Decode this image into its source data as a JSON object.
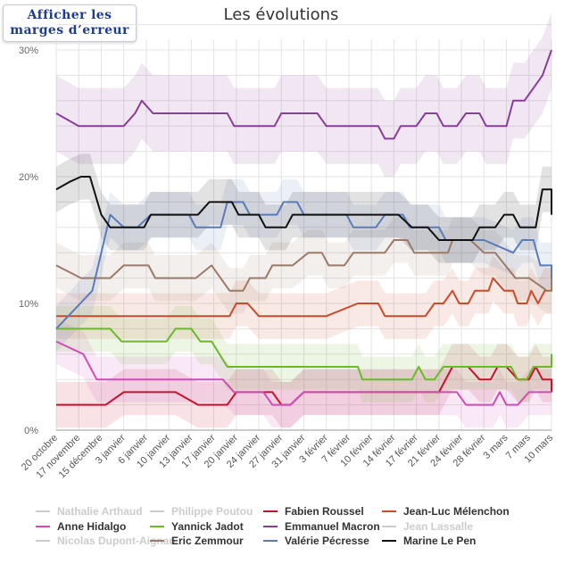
{
  "margin_button": {
    "line1": "Afficher les",
    "line2": "marges d’erreur"
  },
  "chart_data": {
    "type": "line",
    "title": "Les évolutions",
    "xlabel": "",
    "ylabel": "",
    "ylim": [
      0,
      30
    ],
    "yticks": [
      0,
      10,
      20,
      30
    ],
    "ytick_labels": [
      "0%",
      "10%",
      "20%",
      "30%"
    ],
    "grid": true,
    "legend_position": "bottom",
    "x_labels": [
      "20 octobre",
      "17 novembre",
      "15 décembre",
      "3 janvier",
      "6 janvier",
      "10 janvier",
      "13 janvier",
      "17 janvier",
      "20 janvier",
      "24 janvier",
      "27 janvier",
      "31 janvier",
      "3 février",
      "7 février",
      "10 février",
      "14 février",
      "17 février",
      "21 février",
      "24 février",
      "28 février",
      "3 mars",
      "7 mars",
      "10 mars"
    ],
    "series": [
      {
        "name": "Nathalie Arthaud",
        "color": "#cccccc",
        "visible": false,
        "values": []
      },
      {
        "name": "Philippe Poutou",
        "color": "#cccccc",
        "visible": false,
        "values": []
      },
      {
        "name": "Fabien Roussel",
        "color": "#c8102e",
        "visible": true,
        "values": [
          [
            0,
            2
          ],
          [
            2.2,
            2
          ],
          [
            3,
            3
          ],
          [
            5.3,
            3
          ],
          [
            6.3,
            2
          ],
          [
            7.6,
            2
          ],
          [
            8,
            3
          ],
          [
            9.6,
            3
          ],
          [
            10,
            2
          ],
          [
            10.4,
            2
          ],
          [
            11,
            3
          ],
          [
            12,
            3
          ],
          [
            13,
            3
          ],
          [
            14,
            3
          ],
          [
            16.3,
            3
          ],
          [
            17,
            3
          ],
          [
            17.6,
            5
          ],
          [
            18.3,
            5
          ],
          [
            18.8,
            4
          ],
          [
            19.3,
            4
          ],
          [
            19.6,
            5
          ],
          [
            20,
            5
          ],
          [
            20.5,
            4
          ],
          [
            21,
            4
          ],
          [
            21.3,
            5
          ],
          [
            21.6,
            4
          ],
          [
            22.2,
            4
          ],
          [
            22.5,
            3
          ]
        ]
      },
      {
        "name": "Jean-Luc Mélenchon",
        "color": "#cc4a2a",
        "visible": true,
        "values": [
          [
            0,
            9
          ],
          [
            3.9,
            9
          ],
          [
            4.3,
            9
          ],
          [
            7.7,
            9
          ],
          [
            8,
            10
          ],
          [
            8.5,
            10
          ],
          [
            9,
            9
          ],
          [
            12,
            9
          ],
          [
            13.4,
            10
          ],
          [
            14.3,
            10
          ],
          [
            14.6,
            9
          ],
          [
            16.4,
            9
          ],
          [
            16.8,
            10
          ],
          [
            17.2,
            10
          ],
          [
            17.6,
            11
          ],
          [
            17.9,
            10
          ],
          [
            18.3,
            10
          ],
          [
            18.6,
            11
          ],
          [
            19.2,
            11
          ],
          [
            19.4,
            12
          ],
          [
            19.9,
            11
          ],
          [
            20.3,
            11
          ],
          [
            20.5,
            10
          ],
          [
            20.9,
            10
          ],
          [
            21.1,
            11
          ],
          [
            21.4,
            10
          ],
          [
            21.7,
            11
          ],
          [
            22.2,
            11
          ],
          [
            22.5,
            12
          ]
        ]
      },
      {
        "name": "Anne Hidalgo",
        "color": "#d04cb4",
        "visible": true,
        "values": [
          [
            0,
            7
          ],
          [
            1.2,
            6
          ],
          [
            1.8,
            4
          ],
          [
            5,
            4
          ],
          [
            5.6,
            4
          ],
          [
            7.4,
            4
          ],
          [
            7.9,
            3
          ],
          [
            9.2,
            3
          ],
          [
            9.6,
            2
          ],
          [
            10.4,
            2
          ],
          [
            11,
            3
          ],
          [
            15,
            3
          ],
          [
            17.1,
            3
          ],
          [
            17.8,
            3
          ],
          [
            18.2,
            2
          ],
          [
            19.4,
            2
          ],
          [
            19.7,
            3
          ],
          [
            20,
            2
          ],
          [
            20.5,
            2
          ],
          [
            21,
            3
          ],
          [
            22.5,
            3
          ]
        ]
      },
      {
        "name": "Yannick Jadot",
        "color": "#6ab92b",
        "visible": true,
        "values": [
          [
            0,
            8
          ],
          [
            2.4,
            8
          ],
          [
            2.9,
            7
          ],
          [
            4.9,
            7
          ],
          [
            5.3,
            8
          ],
          [
            6,
            8
          ],
          [
            6.4,
            7
          ],
          [
            6.9,
            7
          ],
          [
            7.6,
            5
          ],
          [
            12,
            5
          ],
          [
            13.4,
            5
          ],
          [
            13.6,
            4
          ],
          [
            15,
            4
          ],
          [
            15.8,
            4
          ],
          [
            16.1,
            5
          ],
          [
            16.4,
            4
          ],
          [
            16.8,
            4
          ],
          [
            17.2,
            5
          ],
          [
            18.3,
            5
          ],
          [
            20,
            5
          ],
          [
            20.2,
            5
          ],
          [
            20.5,
            4
          ],
          [
            20.9,
            4
          ],
          [
            21.2,
            5
          ],
          [
            22.1,
            5
          ],
          [
            22.5,
            6
          ]
        ]
      },
      {
        "name": "Emmanuel Macron",
        "color": "#8a3c9a",
        "visible": true,
        "values": [
          [
            0,
            25
          ],
          [
            1,
            24
          ],
          [
            3,
            24
          ],
          [
            3.5,
            25
          ],
          [
            3.8,
            26
          ],
          [
            4.3,
            25
          ],
          [
            7.6,
            25
          ],
          [
            7.9,
            24
          ],
          [
            9.7,
            24
          ],
          [
            10,
            25
          ],
          [
            11.6,
            25
          ],
          [
            12,
            24
          ],
          [
            14.3,
            24
          ],
          [
            14.6,
            23
          ],
          [
            15,
            23
          ],
          [
            15.3,
            24
          ],
          [
            16,
            24
          ],
          [
            16.4,
            25
          ],
          [
            16.9,
            25
          ],
          [
            17.2,
            24
          ],
          [
            17.8,
            24
          ],
          [
            18.2,
            25
          ],
          [
            18.8,
            25
          ],
          [
            19.1,
            24
          ],
          [
            20,
            24
          ],
          [
            20.3,
            26
          ],
          [
            20.8,
            26
          ],
          [
            21.6,
            28
          ],
          [
            22.1,
            30
          ],
          [
            22.5,
            30
          ]
        ]
      },
      {
        "name": "Jean Lassalle",
        "color": "#cccccc",
        "visible": false,
        "values": []
      },
      {
        "name": "Nicolas Dupont-Aignan",
        "color": "#cccccc",
        "visible": false,
        "values": []
      },
      {
        "name": "Eric Zemmour",
        "color": "#9a7a68",
        "visible": true,
        "values": [
          [
            0,
            13
          ],
          [
            1.1,
            12
          ],
          [
            2.4,
            12
          ],
          [
            3,
            13
          ],
          [
            4.1,
            13
          ],
          [
            4.4,
            12
          ],
          [
            6.2,
            12
          ],
          [
            6.9,
            13
          ],
          [
            7.3,
            12
          ],
          [
            7.7,
            11
          ],
          [
            8.3,
            11
          ],
          [
            8.6,
            12
          ],
          [
            9.3,
            12
          ],
          [
            9.6,
            13
          ],
          [
            10.5,
            13
          ],
          [
            11.2,
            14
          ],
          [
            11.8,
            14
          ],
          [
            12.1,
            13
          ],
          [
            12.8,
            13
          ],
          [
            13.2,
            14
          ],
          [
            14.6,
            14
          ],
          [
            15,
            15
          ],
          [
            15.6,
            15
          ],
          [
            15.9,
            14
          ],
          [
            17.4,
            14
          ],
          [
            17.6,
            15
          ],
          [
            18.4,
            15
          ],
          [
            19,
            14
          ],
          [
            19.5,
            14
          ],
          [
            20.4,
            12
          ],
          [
            21,
            12
          ],
          [
            21.8,
            11
          ],
          [
            22.2,
            11
          ],
          [
            22.5,
            12
          ]
        ]
      },
      {
        "name": "Valérie Pécresse",
        "color": "#5a7ab8",
        "visible": true,
        "values": [
          [
            0,
            8
          ],
          [
            1.6,
            11
          ],
          [
            2,
            14
          ],
          [
            2.4,
            17
          ],
          [
            3,
            16
          ],
          [
            3.6,
            16
          ],
          [
            4.2,
            17
          ],
          [
            5.6,
            17
          ],
          [
            5.9,
            17
          ],
          [
            6.2,
            16
          ],
          [
            7.3,
            16
          ],
          [
            7.6,
            18
          ],
          [
            8.3,
            18
          ],
          [
            8.6,
            17
          ],
          [
            9.8,
            17
          ],
          [
            10.1,
            18
          ],
          [
            10.7,
            18
          ],
          [
            11,
            17
          ],
          [
            12.9,
            17
          ],
          [
            13.2,
            16
          ],
          [
            14.2,
            16
          ],
          [
            14.6,
            17
          ],
          [
            15.4,
            17
          ],
          [
            15.7,
            16
          ],
          [
            17,
            16
          ],
          [
            17.3,
            15
          ],
          [
            18.6,
            15
          ],
          [
            19,
            15
          ],
          [
            20.3,
            14
          ],
          [
            20.7,
            15
          ],
          [
            21.2,
            15
          ],
          [
            21.5,
            13
          ],
          [
            22,
            13
          ],
          [
            22.2,
            12
          ],
          [
            22.5,
            12
          ]
        ]
      },
      {
        "name": "Marine Le Pen",
        "color": "#111111",
        "visible": true,
        "values": [
          [
            0,
            19
          ],
          [
            0.6,
            19.6
          ],
          [
            1.1,
            20
          ],
          [
            1.5,
            20
          ],
          [
            2,
            17
          ],
          [
            2.4,
            16
          ],
          [
            3.9,
            16
          ],
          [
            4.2,
            17
          ],
          [
            5.7,
            17
          ],
          [
            6.3,
            17
          ],
          [
            6.8,
            18
          ],
          [
            7.8,
            18
          ],
          [
            8.1,
            17
          ],
          [
            9,
            17
          ],
          [
            9.3,
            16
          ],
          [
            10.2,
            16
          ],
          [
            10.5,
            17
          ],
          [
            11.2,
            17
          ],
          [
            15.2,
            17
          ],
          [
            15.8,
            16
          ],
          [
            16.5,
            16
          ],
          [
            17,
            15
          ],
          [
            18.5,
            15
          ],
          [
            18.8,
            16
          ],
          [
            19.5,
            16
          ],
          [
            19.9,
            17
          ],
          [
            20.3,
            17
          ],
          [
            20.6,
            16
          ],
          [
            21.3,
            16
          ],
          [
            21.6,
            19
          ],
          [
            22.3,
            19
          ],
          [
            22.6,
            18
          ],
          [
            23.1,
            18
          ],
          [
            23.3,
            18
          ],
          [
            23.9,
            18
          ],
          [
            24.5,
            18
          ],
          [
            24.8,
            17
          ]
        ]
      }
    ]
  }
}
